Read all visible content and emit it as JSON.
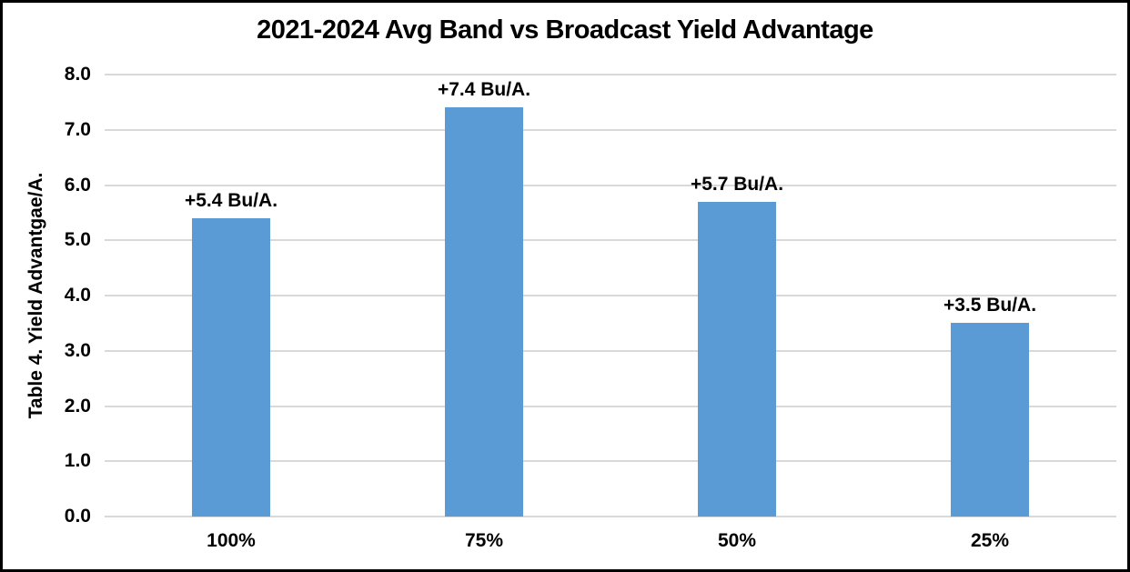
{
  "chart_data": {
    "type": "bar",
    "title": "2021-2024 Avg Band vs Broadcast Yield Advantage",
    "ylabel": "Table 4. Yield Advantgae/A.",
    "xlabel": "",
    "categories": [
      "100%",
      "75%",
      "50%",
      "25%"
    ],
    "values": [
      5.4,
      7.4,
      5.7,
      3.5
    ],
    "bar_labels": [
      "+5.4 Bu/A.",
      "+7.4 Bu/A.",
      "+5.7 Bu/A.",
      "+3.5 Bu/A."
    ],
    "ylim": [
      0.0,
      8.0
    ],
    "ytick_labels": [
      "0.0",
      "1.0",
      "2.0",
      "3.0",
      "4.0",
      "5.0",
      "6.0",
      "7.0",
      "8.0"
    ],
    "ytick_values": [
      0,
      1,
      2,
      3,
      4,
      5,
      6,
      7,
      8
    ],
    "grid": true,
    "legend": "none",
    "colors": {
      "bar": "#5b9bd5",
      "gridline": "#d9d9d9",
      "text": "#000000",
      "frame_border": "#000000",
      "background": "#ffffff"
    }
  }
}
